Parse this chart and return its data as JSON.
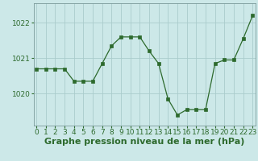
{
  "x": [
    0,
    1,
    2,
    3,
    4,
    5,
    6,
    7,
    8,
    9,
    10,
    11,
    12,
    13,
    14,
    15,
    16,
    17,
    18,
    19,
    20,
    21,
    22,
    23
  ],
  "y": [
    1020.7,
    1020.7,
    1020.7,
    1020.7,
    1020.35,
    1020.35,
    1020.35,
    1020.85,
    1021.35,
    1021.6,
    1021.6,
    1021.6,
    1021.2,
    1020.85,
    1019.85,
    1019.4,
    1019.55,
    1019.55,
    1019.55,
    1020.85,
    1020.95,
    1020.95,
    1021.55,
    1022.2
  ],
  "line_color": "#2d6a2d",
  "marker": "s",
  "marker_size": 2.5,
  "bg_color": "#cce8e8",
  "grid_color": "#aacccc",
  "xlabel": "Graphe pression niveau de la mer (hPa)",
  "xlabel_fontsize": 8,
  "ytick_labels": [
    "1020",
    "1021",
    "1022"
  ],
  "ytick_vals": [
    1020,
    1021,
    1022
  ],
  "xticks": [
    0,
    1,
    2,
    3,
    4,
    5,
    6,
    7,
    8,
    9,
    10,
    11,
    12,
    13,
    14,
    15,
    16,
    17,
    18,
    19,
    20,
    21,
    22,
    23
  ],
  "ylim": [
    1019.1,
    1022.55
  ],
  "xlim": [
    -0.3,
    23.3
  ],
  "tick_fontsize": 6.5,
  "line_color_dark": "#2d6a2d",
  "spine_color": "#7a9a9a"
}
